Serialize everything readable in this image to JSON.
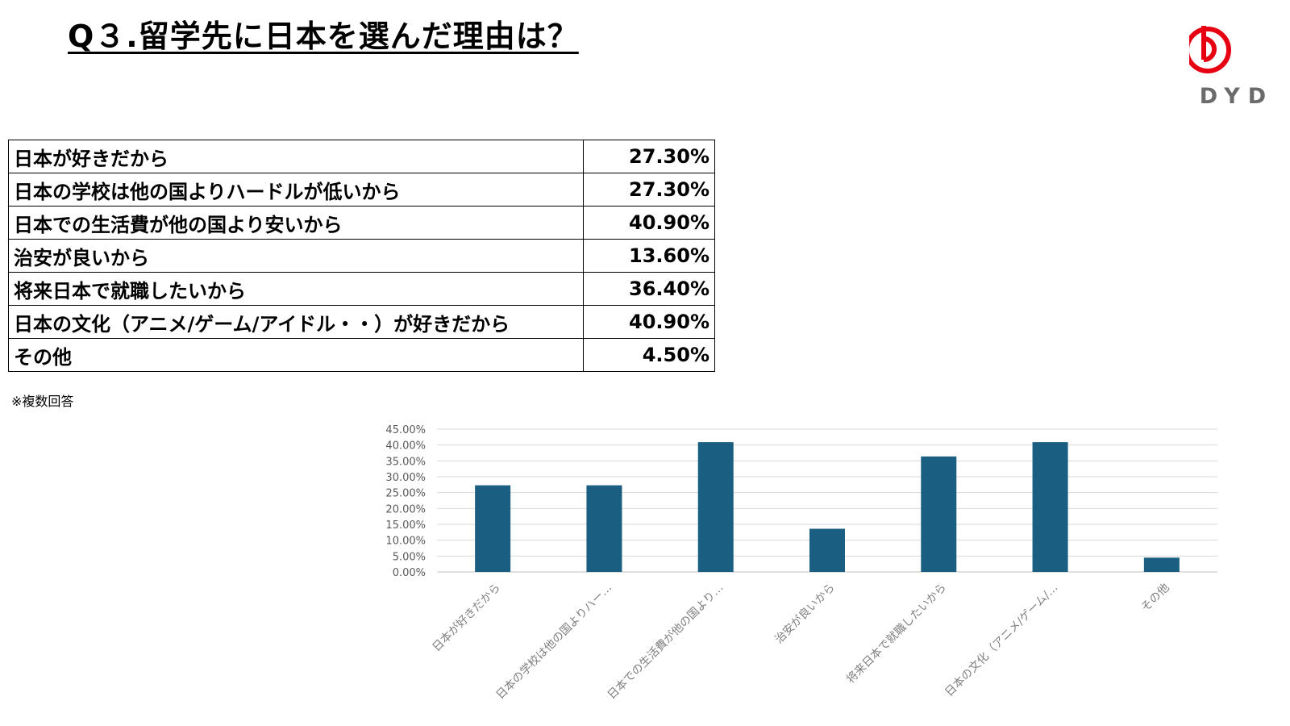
{
  "title": "Q３.留学先に日本を選んだ理由は？",
  "logo": {
    "text": "DYD",
    "icon": "dyd-logo-icon",
    "color": "#e60012",
    "text_color": "#6b6b6b"
  },
  "table": {
    "rows": [
      {
        "label": "日本が好きだから",
        "value": "27.30%"
      },
      {
        "label": "日本の学校は他の国よりハードルが低いから",
        "value": "27.30%"
      },
      {
        "label": "日本での生活費が他の国より安いから",
        "value": "40.90%"
      },
      {
        "label": "治安が良いから",
        "value": "13.60%"
      },
      {
        "label": "将来日本で就職したいから",
        "value": "36.40%"
      },
      {
        "label": "日本の文化（アニメ/ゲーム/アイドル・・）が好きだから",
        "value": "40.90%"
      },
      {
        "label": "その他",
        "value": "4.50%"
      }
    ]
  },
  "note": "※複数回答",
  "chart_data": {
    "type": "bar",
    "categories": [
      "日本が好きだから",
      "日本の学校は他の国よりハー…",
      "日本での生活費が他の国より…",
      "治安が良いから",
      "将来日本で就職したいから",
      "日本の文化（アニメ/ゲーム/…",
      "その他"
    ],
    "values": [
      27.3,
      27.3,
      40.9,
      13.6,
      36.4,
      40.9,
      4.5
    ],
    "ylim": [
      0,
      45
    ],
    "yticks": [
      "0.00%",
      "5.00%",
      "10.00%",
      "15.00%",
      "20.00%",
      "25.00%",
      "30.00%",
      "35.00%",
      "40.00%",
      "45.00%"
    ],
    "grid": true,
    "bar_color": "#1a5f82",
    "title": "",
    "xlabel": "",
    "ylabel": ""
  }
}
